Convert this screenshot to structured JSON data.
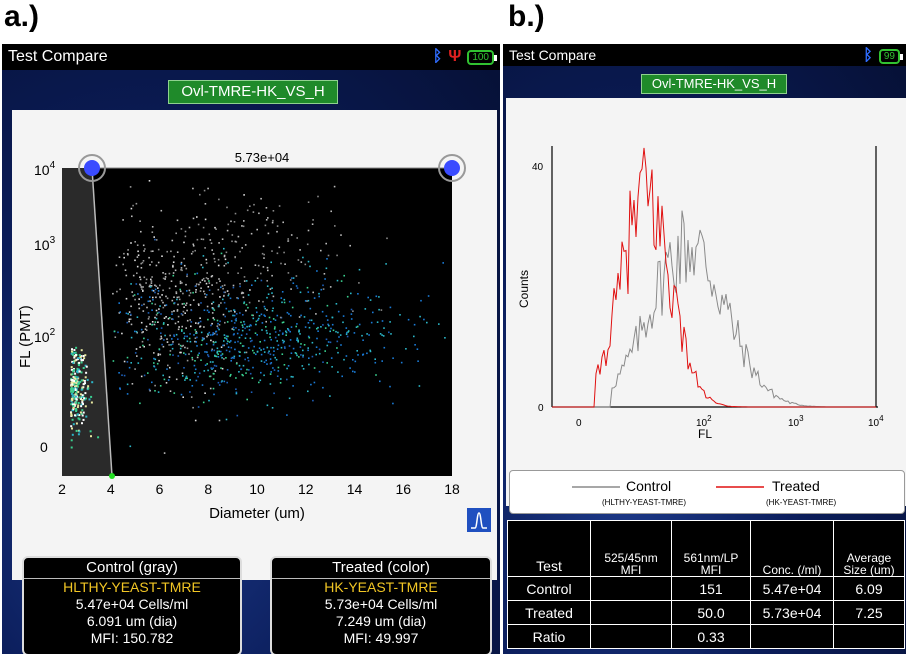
{
  "panels": {
    "a": "a.)",
    "b": "b.)"
  },
  "colors": {
    "titlebar": "#000000",
    "protocol_bg": "#1f8a2a",
    "control_line": "#8a8a8a",
    "treated_line": "#e01010",
    "stat_name": "#f2c624"
  },
  "left": {
    "title": "Test Compare",
    "battery": "100",
    "protocol": "Ovl-TMRE-HK_VS_H",
    "scatter": {
      "gate_label": "5.73e+04",
      "ylabel": "FL (PMT)",
      "xlabel": "Diameter (um)",
      "x_ticks": [
        "2",
        "4",
        "6",
        "8",
        "10",
        "12",
        "14",
        "16",
        "18"
      ],
      "y_ticks": [
        "0",
        "10",
        "10",
        "10",
        "10"
      ],
      "y_tick_exps": [
        "",
        "2",
        "3",
        "4"
      ]
    },
    "control": {
      "header": "Control (gray)",
      "name": "HLTHY-YEAST-TMRE",
      "conc": "5.47e+04 Cells/ml",
      "size": "6.091 um (dia)",
      "mfi_label": "MFI:",
      "mfi": "150.782"
    },
    "treated": {
      "header": "Treated (color)",
      "name": "HK-YEAST-TMRE",
      "conc": "5.73e+04 Cells/ml",
      "size": "7.249 um (dia)",
      "mfi_label": "MFI:",
      "mfi": "49.997"
    }
  },
  "right": {
    "title": "Test Compare",
    "battery": "99",
    "protocol": "Ovl-TMRE-HK_VS_H",
    "hist": {
      "ylabel": "Counts",
      "xlabel": "FL",
      "y_top": "40",
      "y_zero": "0",
      "x_zero": "0",
      "x_tick_base": "10",
      "x_tick_exps": [
        "2",
        "3",
        "4"
      ]
    },
    "legend": {
      "control": "Control",
      "control_sub": "(HLTHY-YEAST-TMRE)",
      "treated": "Treated",
      "treated_sub": "(HK-YEAST-TMRE)"
    },
    "table": {
      "headers": [
        "Test",
        "525/45nm MFI",
        "561nm/LP MFI",
        "Conc. (/ml)",
        "Average Size (um)"
      ],
      "rows": [
        [
          "Control",
          "",
          "151",
          "5.47e+04",
          "6.09"
        ],
        [
          "Treated",
          "",
          "50.0",
          "5.73e+04",
          "7.25"
        ],
        [
          "Ratio",
          "",
          "0.33",
          "",
          ""
        ]
      ]
    }
  }
}
